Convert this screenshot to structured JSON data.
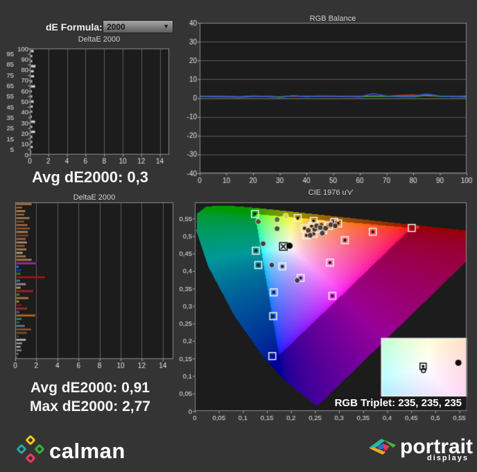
{
  "page": {
    "background": "#343434",
    "plot_background": "#1c1c1c",
    "grid_color": "#5c5c5c",
    "frame_color": "#8d8d8d",
    "tick_label_color": "#e0e0e0",
    "title_color": "#cfcfcf"
  },
  "controls": {
    "de_formula_label": "dE Formula:",
    "de_formula_value": "2000",
    "dropdown_arrow": "▼"
  },
  "summary": {
    "grayscale_avg": "Avg dE2000: 0,3",
    "colorchecker_avg": "Avg dE2000: 0,91",
    "colorchecker_max": "Max dE2000: 2,77"
  },
  "footer": {
    "calman_text": "calman",
    "portrait_text": "portrait",
    "displays_text": "displays"
  },
  "chart_data": [
    {
      "id": "grayscale_deltae",
      "type": "bar",
      "orientation": "horizontal",
      "title": "DeltaE 2000",
      "bar_color": "#efefef",
      "xlim": [
        0,
        15
      ],
      "x_tick_values": [
        0,
        2,
        4,
        6,
        8,
        10,
        12,
        14
      ],
      "x_tick_labels": [
        "0",
        "2",
        "4",
        "6",
        "8",
        "10",
        "12",
        "14"
      ],
      "categories": [
        100,
        95,
        90,
        85,
        80,
        75,
        70,
        65,
        60,
        55,
        50,
        45,
        40,
        35,
        30,
        25,
        20,
        15,
        10,
        5,
        0
      ],
      "y_tick_labels": [
        "100",
        "95",
        "90",
        "85",
        "80",
        "75",
        "70",
        "65",
        "60",
        "55",
        "50",
        "45",
        "40",
        "35",
        "30",
        "25",
        "20",
        "15",
        "10",
        "5",
        "0"
      ],
      "values": [
        0.35,
        0.2,
        0.2,
        0.55,
        0.35,
        0.4,
        0.2,
        0.5,
        0.15,
        0.2,
        0.35,
        0.25,
        0.2,
        0.15,
        0.5,
        0.2,
        0.5,
        0.2,
        0.2,
        0.25,
        0.1
      ]
    },
    {
      "id": "rgb_balance",
      "type": "line",
      "title": "RGB Balance",
      "ylim": [
        -40,
        40
      ],
      "y_tick_values": [
        40,
        30,
        20,
        10,
        0,
        -10,
        -20,
        -30,
        -40
      ],
      "y_tick_labels": [
        "40",
        "30",
        "20",
        "10",
        "0",
        "-10",
        "-20",
        "-30",
        "-40"
      ],
      "x_tick_values": [
        0,
        10,
        20,
        30,
        40,
        50,
        60,
        70,
        80,
        90,
        100
      ],
      "x_tick_labels": [
        "0",
        "10",
        "20",
        "30",
        "40",
        "50",
        "60",
        "70",
        "80",
        "90",
        "100"
      ],
      "x": [
        0,
        5,
        10,
        15,
        20,
        25,
        30,
        35,
        40,
        45,
        50,
        55,
        60,
        65,
        70,
        75,
        80,
        85,
        90,
        95,
        100
      ],
      "series": [
        {
          "name": "Red",
          "color": "#d23030",
          "values": [
            0.8,
            0.8,
            0.7,
            0.4,
            0.8,
            0.8,
            0.6,
            1.0,
            0.8,
            1.0,
            0.9,
            0.8,
            0.7,
            1.2,
            1.0,
            1.5,
            1.6,
            1.2,
            1.0,
            0.8,
            0.6
          ]
        },
        {
          "name": "Green",
          "color": "#2eae2e",
          "values": [
            0.9,
            0.8,
            0.8,
            0.7,
            1.1,
            0.9,
            0.5,
            1.2,
            0.9,
            1.1,
            1.0,
            0.9,
            0.8,
            1.0,
            0.9,
            0.8,
            0.7,
            1.5,
            0.9,
            0.8,
            1.0
          ]
        },
        {
          "name": "Blue",
          "color": "#3253e8",
          "values": [
            1.0,
            0.9,
            0.8,
            0.6,
            0.9,
            1.0,
            0.3,
            1.3,
            0.7,
            1.0,
            1.1,
            0.9,
            0.7,
            2.4,
            1.1,
            1.0,
            0.9,
            2.2,
            1.1,
            0.9,
            0.5
          ]
        }
      ]
    },
    {
      "id": "colorchecker_deltae",
      "type": "bar",
      "orientation": "horizontal",
      "title": "DeltaE 2000",
      "xlim": [
        0,
        15
      ],
      "x_tick_values": [
        0,
        2,
        4,
        6,
        8,
        10,
        12,
        14
      ],
      "x_tick_labels": [
        "0",
        "2",
        "4",
        "6",
        "8",
        "10",
        "12",
        "14"
      ],
      "bars": [
        {
          "color": "#d4915e",
          "value": 1.5
        },
        {
          "color": "#c07b4a",
          "value": 0.6
        },
        {
          "color": "#e0a878",
          "value": 0.9
        },
        {
          "color": "#b8814f",
          "value": 0.8
        },
        {
          "color": "#d49a6a",
          "value": 1.3
        },
        {
          "color": "#9a6a42",
          "value": 0.8
        },
        {
          "color": "#c8885a",
          "value": 1.1
        },
        {
          "color": "#a86f47",
          "value": 1.35
        },
        {
          "color": "#d9a06e",
          "value": 1.15
        },
        {
          "color": "#8a5f3c",
          "value": 1.2
        },
        {
          "color": "#c08355",
          "value": 0.95
        },
        {
          "color": "#e2ac80",
          "value": 1.05
        },
        {
          "color": "#a97450",
          "value": 0.85
        },
        {
          "color": "#caa26a",
          "value": 1.0
        },
        {
          "color": "#e8c6a0",
          "value": 0.65
        },
        {
          "color": "#c89060",
          "value": 0.95
        },
        {
          "color": "#d09868",
          "value": 1.5
        },
        {
          "color": "#c838c8",
          "value": 1.95
        },
        {
          "color": "#28a8d8",
          "value": 0.28
        },
        {
          "color": "#2848c8",
          "value": 0.55
        },
        {
          "color": "#28a048",
          "value": 0.45
        },
        {
          "color": "#cc2020",
          "value": 2.77
        },
        {
          "color": "#30b0c0",
          "value": 0.4
        },
        {
          "color": "#c8a0d8",
          "value": 0.95
        },
        {
          "color": "#d8cc50",
          "value": 0.45
        },
        {
          "color": "#c83028",
          "value": 1.65
        },
        {
          "color": "#48b058",
          "value": 0.35
        },
        {
          "color": "#d89858",
          "value": 1.2
        },
        {
          "color": "#b8c050",
          "value": 0.3
        },
        {
          "color": "#902828",
          "value": 0.6
        },
        {
          "color": "#c04048",
          "value": 1.1
        },
        {
          "color": "#6870c0",
          "value": 0.35
        },
        {
          "color": "#e08830",
          "value": 1.85
        },
        {
          "color": "#40a8a0",
          "value": 0.55
        },
        {
          "color": "#388840",
          "value": 0.35
        },
        {
          "color": "#7898c8",
          "value": 0.85
        },
        {
          "color": "#a87040",
          "value": 1.45
        },
        {
          "color": "#9a6838",
          "value": 1.05
        },
        {
          "color": "#555555",
          "value": 0.3
        },
        {
          "color": "#e8e8e8",
          "value": 0.95
        },
        {
          "color": "#b8b8b8",
          "value": 0.6
        },
        {
          "color": "#d0d0d0",
          "value": 0.45
        },
        {
          "color": "#a8a8a8",
          "value": 0.55
        },
        {
          "color": "#989898",
          "value": 0.25
        },
        {
          "color": "#808080",
          "value": 0.15
        }
      ]
    },
    {
      "id": "cie_1976",
      "type": "scatter",
      "title": "CIE 1976 u'v'",
      "xlim": [
        0,
        0.565
      ],
      "ylim": [
        0,
        0.596
      ],
      "x_tick_values": [
        0,
        0.05,
        0.1,
        0.15,
        0.2,
        0.25,
        0.3,
        0.35,
        0.4,
        0.45,
        0.5,
        0.55
      ],
      "x_tick_labels": [
        "0",
        "0,05",
        "0,1",
        "0,15",
        "0,2",
        "0,25",
        "0,3",
        "0,35",
        "0,4",
        "0,45",
        "0,5",
        "0,55"
      ],
      "y_tick_values": [
        0,
        0.05,
        0.1,
        0.15,
        0.2,
        0.25,
        0.3,
        0.35,
        0.4,
        0.45,
        0.5,
        0.55
      ],
      "y_tick_labels": [
        "0",
        "0,05",
        "0,1",
        "0,15",
        "0,2",
        "0,25",
        "0,3",
        "0,35",
        "0,4",
        "0,45",
        "0,5",
        "0,55"
      ],
      "rgb_triplet_label": "RGB Triplet: 235, 235, 235",
      "gamut_triangle": [
        [
          0.451,
          0.523
        ],
        [
          0.125,
          0.563
        ],
        [
          0.175,
          0.158
        ]
      ],
      "spectral_locus": [
        [
          0.2569,
          0.0165
        ],
        [
          0.2558,
          0.0159
        ],
        [
          0.2522,
          0.0169
        ],
        [
          0.2461,
          0.022
        ],
        [
          0.2347,
          0.035
        ],
        [
          0.2161,
          0.055
        ],
        [
          0.1877,
          0.0871
        ],
        [
          0.1441,
          0.151
        ],
        [
          0.0828,
          0.2708
        ],
        [
          0.0282,
          0.4117
        ],
        [
          0.0035,
          0.5131
        ],
        [
          0.0046,
          0.5639
        ],
        [
          0.0231,
          0.5836
        ],
        [
          0.0501,
          0.5868
        ],
        [
          0.0792,
          0.5856
        ],
        [
          0.1127,
          0.5821
        ],
        [
          0.1531,
          0.5766
        ],
        [
          0.2026,
          0.5694
        ],
        [
          0.2623,
          0.5604
        ],
        [
          0.3315,
          0.5501
        ],
        [
          0.4035,
          0.5393
        ],
        [
          0.4691,
          0.5296
        ],
        [
          0.5203,
          0.5219
        ],
        [
          0.583,
          0.5125
        ],
        [
          0.6234,
          0.5065
        ]
      ],
      "targets": [
        {
          "u": 0.125,
          "v": 0.563,
          "dot": true
        },
        {
          "u": 0.214,
          "v": 0.551,
          "dot": true
        },
        {
          "u": 0.247,
          "v": 0.543,
          "dot": true
        },
        {
          "u": 0.29,
          "v": 0.54,
          "dot": true
        },
        {
          "u": 0.267,
          "v": 0.516,
          "dot": true
        },
        {
          "u": 0.37,
          "v": 0.512,
          "dot": true
        },
        {
          "u": 0.451,
          "v": 0.523,
          "dot": false
        },
        {
          "u": 0.312,
          "v": 0.488,
          "dot": true
        },
        {
          "u": 0.127,
          "v": 0.458,
          "dot": true
        },
        {
          "u": 0.132,
          "v": 0.417,
          "dot": true
        },
        {
          "u": 0.182,
          "v": 0.413,
          "dot": true
        },
        {
          "u": 0.22,
          "v": 0.38,
          "dot": true
        },
        {
          "u": 0.281,
          "v": 0.424,
          "dot": true
        },
        {
          "u": 0.286,
          "v": 0.329,
          "dot": true
        },
        {
          "u": 0.164,
          "v": 0.339,
          "dot": true
        },
        {
          "u": 0.163,
          "v": 0.271,
          "dot": true
        },
        {
          "u": 0.161,
          "v": 0.157,
          "dot": false
        },
        {
          "u": 0.228,
          "v": 0.522,
          "dot": true
        },
        {
          "u": 0.243,
          "v": 0.528,
          "dot": true
        },
        {
          "u": 0.256,
          "v": 0.521,
          "dot": true
        },
        {
          "u": 0.263,
          "v": 0.532,
          "dot": true
        },
        {
          "u": 0.279,
          "v": 0.529,
          "dot": true
        },
        {
          "u": 0.298,
          "v": 0.536,
          "dot": true
        },
        {
          "u": 0.247,
          "v": 0.506,
          "dot": true
        },
        {
          "u": 0.232,
          "v": 0.502,
          "dot": true
        }
      ],
      "measurements": [
        {
          "u": 0.132,
          "v": 0.541,
          "color": "#3f5a2e"
        },
        {
          "u": 0.171,
          "v": 0.547,
          "color": "#5a6a28"
        },
        {
          "u": 0.189,
          "v": 0.557,
          "color": "#d8d832"
        },
        {
          "u": 0.171,
          "v": 0.521,
          "color": "#43502e"
        },
        {
          "u": 0.142,
          "v": 0.478,
          "color": "#36453a"
        },
        {
          "u": 0.16,
          "v": 0.417,
          "color": "#31404f"
        },
        {
          "u": 0.213,
          "v": 0.373,
          "color": "#46364e"
        },
        {
          "u": 0.265,
          "v": 0.508,
          "color": "#4e3c30"
        },
        {
          "u": 0.236,
          "v": 0.516,
          "color": "#4e4030"
        },
        {
          "u": 0.249,
          "v": 0.519,
          "color": "#52402e"
        },
        {
          "u": 0.253,
          "v": 0.529,
          "color": "#52402e"
        },
        {
          "u": 0.261,
          "v": 0.524,
          "color": "#503e2c"
        },
        {
          "u": 0.272,
          "v": 0.522,
          "color": "#4e3a2a"
        },
        {
          "u": 0.283,
          "v": 0.532,
          "color": "#503828"
        },
        {
          "u": 0.292,
          "v": 0.529,
          "color": "#4e3626"
        },
        {
          "u": 0.24,
          "v": 0.502,
          "color": "#463a30"
        },
        {
          "u": 0.463,
          "v": 0.525,
          "color": "#d22a2a"
        }
      ],
      "white_point": {
        "target": [
          0.184,
          0.47
        ],
        "measured": [
          0.197,
          0.472
        ]
      },
      "inset": {
        "u_range": [
          0.155,
          0.235
        ],
        "v_range": [
          0.435,
          0.505
        ],
        "target_rel": [
          0.49,
          0.5
        ],
        "measured_rel": [
          0.91,
          0.42
        ]
      }
    }
  ]
}
